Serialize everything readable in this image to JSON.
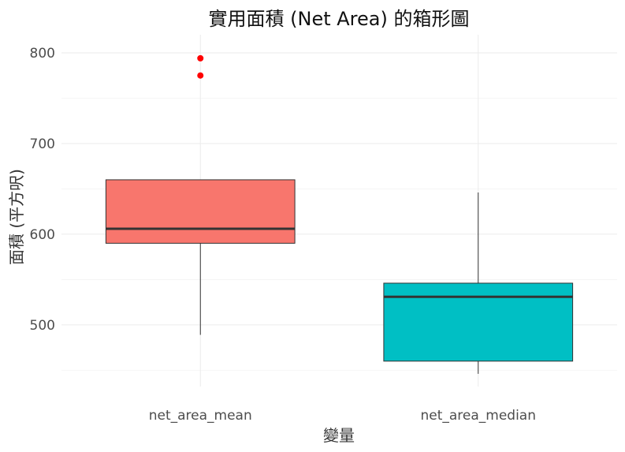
{
  "chart_data": {
    "type": "box",
    "title": "實用面積 (Net Area) 的箱形圖",
    "xlabel": "變量",
    "ylabel": "面積 (平方呎)",
    "ylim": [
      432,
      820
    ],
    "yticks": [
      500,
      600,
      700,
      800
    ],
    "grid": true,
    "legend": "none",
    "categories": [
      "net_area_mean",
      "net_area_median"
    ],
    "boxes": [
      {
        "category": "net_area_mean",
        "q1": 590,
        "median": 606,
        "q3": 660,
        "whisker_low": 489,
        "whisker_high": 660,
        "outliers": [
          775,
          794
        ],
        "fill": "#f8766d"
      },
      {
        "category": "net_area_median",
        "q1": 460,
        "median": 531,
        "q3": 546,
        "whisker_low": 446,
        "whisker_high": 646,
        "outliers": [],
        "fill": "#00bfc4"
      }
    ],
    "outlier_color": "#ff0000"
  }
}
